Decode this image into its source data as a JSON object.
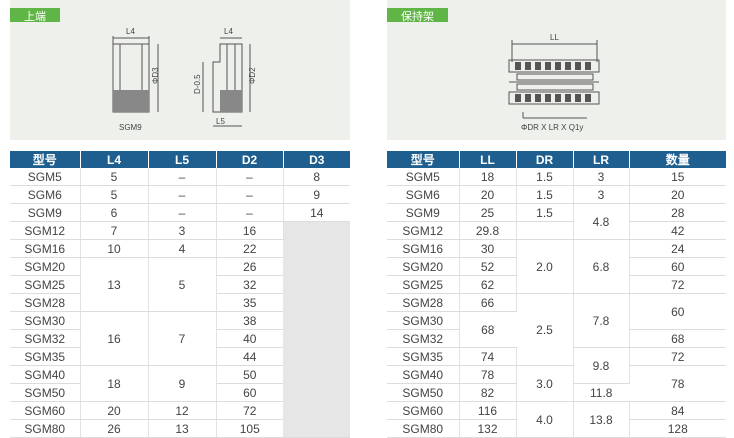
{
  "left": {
    "tag": "上端",
    "fig": {
      "l4": "L4",
      "d3": "ΦD3",
      "d05": "D-0.5",
      "d2": "ΦD2",
      "l5": "L5",
      "caption": "SGM9"
    },
    "headers": [
      "型号",
      "L4",
      "L5",
      "D2",
      "D3"
    ],
    "rows": [
      [
        "SGM5",
        "5",
        "–",
        "–",
        "8"
      ],
      [
        "SGM6",
        "5",
        "–",
        "–",
        "9"
      ],
      [
        "SGM9",
        "6",
        "–",
        "–",
        "14"
      ],
      [
        "SGM12",
        "7",
        "3",
        "16"
      ],
      [
        "SGM16",
        "10",
        "4",
        "22"
      ],
      [
        "SGM20",
        "13",
        "5",
        "26"
      ],
      [
        "SGM25",
        "32"
      ],
      [
        "SGM28",
        "35"
      ],
      [
        "SGM30",
        "16",
        "7",
        "38"
      ],
      [
        "SGM32",
        "40"
      ],
      [
        "SGM35",
        "44"
      ],
      [
        "SGM40",
        "18",
        "9",
        "50"
      ],
      [
        "SGM50",
        "60"
      ],
      [
        "SGM60",
        "20",
        "12",
        "72"
      ],
      [
        "SGM80",
        "26",
        "13",
        "105"
      ]
    ]
  },
  "right": {
    "tag": "保持架",
    "fig": {
      "ll": "LL",
      "caption": "ΦDR X LR X Q1y"
    },
    "headers": [
      "型号",
      "LL",
      "DR",
      "LR",
      "数量"
    ],
    "rows": [
      [
        "SGM5",
        "18",
        "1.5",
        "3",
        "15"
      ],
      [
        "SGM6",
        "20",
        "1.5",
        "3",
        "20"
      ],
      [
        "SGM9",
        "25",
        "1.5",
        "4.8",
        "28"
      ],
      [
        "SGM12",
        "29.8",
        "42"
      ],
      [
        "SGM16",
        "30",
        "2.0",
        "6.8",
        "24"
      ],
      [
        "SGM20",
        "52",
        "60"
      ],
      [
        "SGM25",
        "62",
        "72"
      ],
      [
        "SGM28",
        "66",
        "7.8",
        "60"
      ],
      [
        "SGM30",
        "68",
        "2.5"
      ],
      [
        "SGM32",
        "68"
      ],
      [
        "SGM35",
        "74",
        "9.8",
        "72"
      ],
      [
        "SGM40",
        "78",
        "3.0",
        "78"
      ],
      [
        "SGM50",
        "82",
        "11.8"
      ],
      [
        "SGM60",
        "116",
        "4.0",
        "13.8",
        "84"
      ],
      [
        "SGM80",
        "132",
        "128"
      ]
    ]
  }
}
